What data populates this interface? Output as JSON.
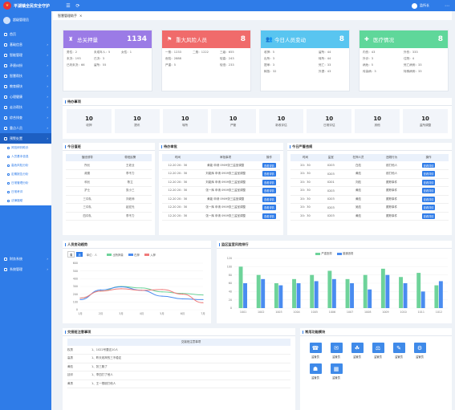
{
  "app": {
    "title": "平湖镇全民安全守护",
    "user": "监所长"
  },
  "sidebar": {
    "profile_name": "超级管理员",
    "items": [
      {
        "label": "首页",
        "active": false
      },
      {
        "label": "基础信息",
        "active": false
      },
      {
        "label": "智能管理",
        "active": false
      },
      {
        "label": "矛盾纠纷",
        "active": false
      },
      {
        "label": "智慧帮扶",
        "active": false
      },
      {
        "label": "教育模块",
        "active": false
      },
      {
        "label": "心理健康",
        "active": false
      },
      {
        "label": "走访帮扶",
        "active": false
      },
      {
        "label": "综合排查",
        "active": false
      },
      {
        "label": "重点人员",
        "active": false
      },
      {
        "label": "预警处置",
        "active": true
      }
    ],
    "sub_items": [
      "风险研判助手",
      "人员基本信息",
      "高危风险分析",
      "定期报告分析",
      "日常管理分析",
      "日常考评",
      "法律援助"
    ],
    "items_after": [
      {
        "label": "财务系统"
      },
      {
        "label": "系统管理"
      }
    ]
  },
  "tabbar": {
    "label": "智慧管理助手",
    "close": "×"
  },
  "stats": [
    {
      "label": "总关押量",
      "value": "1134",
      "color": "#9b7be6",
      "icon": "♜",
      "fields": [
        "男性：2",
        "未成年人：5",
        "女性：1",
        "未决：193",
        "已决：3",
        "",
        "已判未决：66",
        "留所：55",
        ""
      ]
    },
    {
      "label": "重大风险人员",
      "value": "8",
      "color": "#f06b6b",
      "icon": "⚑",
      "fields": [
        "一般：1233",
        "二般：1222",
        "三级：655",
        "危险：2888",
        "",
        "较高：243",
        "严重：5",
        "",
        "较低：233"
      ]
    },
    {
      "label": "今日人员变动",
      "value": "8",
      "color": "#59c5f0",
      "icon": "👥",
      "fields": [
        "收押：5",
        "",
        "留所：44",
        "出所：3",
        "",
        "转所：44",
        "提审：3",
        "",
        "死亡：33",
        "释放：32",
        "",
        "外提：43"
      ]
    },
    {
      "label": "医疗情况",
      "value": "8",
      "color": "#5fd79a",
      "icon": "✚",
      "fields": [
        "内伤：43",
        "外伤：333",
        "外诊：3",
        "住院：4",
        "病危：5",
        "死亡病例：33",
        "传染病：3",
        "特殊病例：33"
      ]
    }
  ],
  "pending": {
    "title": "待办事项",
    "items": [
      {
        "n": "10",
        "l": "收押"
      },
      {
        "n": "10",
        "l": "提讯"
      },
      {
        "n": "10",
        "l": "转所"
      },
      {
        "n": "10",
        "l": "严管"
      },
      {
        "n": "10",
        "l": "新收评估"
      },
      {
        "n": "10",
        "l": "日常评估"
      },
      {
        "n": "10",
        "l": "其他"
      },
      {
        "n": "10",
        "l": "监所调整"
      }
    ]
  },
  "duty": {
    "title": "今日值班",
    "headers": [
      "值班领导",
      "带班民警"
    ],
    "rows": [
      [
        "所长",
        "王老业"
      ],
      [
        "政委",
        "李不力"
      ],
      [
        "科长",
        "陈立"
      ],
      [
        "护士",
        "张小三"
      ],
      [
        "三中队",
        "刘老师"
      ],
      [
        "三中队",
        "赵宏光"
      ],
      [
        "四中队",
        "李不力"
      ]
    ]
  },
  "approval": {
    "title": "待办审批",
    "headers": [
      "时间",
      "审批事项",
      "操作"
    ],
    "rows": [
      [
        "12-20 20：30",
        "黄能  申请 0909张三监室调整",
        "查看详情"
      ],
      [
        "12-20 20：30",
        "刘能辉 申请 0909张三监室调整",
        "查看详情"
      ],
      [
        "12-20 20：30",
        "刘能辉 申请 0909张三监室调整",
        "查看详情"
      ],
      [
        "12-20 20：30",
        "张一辉 申请 0909张三监室调整",
        "查看详情"
      ],
      [
        "12-20 20：30",
        "黄能  申请 0909张三监室调整",
        "查看详情"
      ],
      [
        "12-20 20：30",
        "张一辉 申请 0909张三监室调整",
        "查看详情"
      ],
      [
        "12-20 20：30",
        "张一辉 申请 0909张三监室调整",
        "查看详情"
      ]
    ]
  },
  "strict": {
    "title": "今日严管违规",
    "headers": [
      "时间",
      "监室",
      "在押人员",
      "违规行为",
      "操作"
    ],
    "rows": [
      [
        "20：30",
        "0203",
        "白彪",
        "殴打他人",
        "查看详情"
      ],
      [
        "20：30",
        "0203",
        "黄彪",
        "殴打他人",
        "查看详情"
      ],
      [
        "20：30",
        "0201",
        "刘彪",
        "跟踪事件",
        "查看详情"
      ],
      [
        "20：30",
        "0203",
        "黄彪",
        "跟踪事件",
        "查看详情"
      ],
      [
        "20：30",
        "0203",
        "黄彪",
        "跟踪事件",
        "查看详情"
      ],
      [
        "20：30",
        "0203",
        "吴彪",
        "跟踪事件",
        "查看详情"
      ],
      [
        "20：30",
        "0203",
        "黄彪",
        "跟踪事件",
        "查看详情"
      ]
    ]
  },
  "trend": {
    "title": "人员变动趋势",
    "tabs": [
      "周",
      "月"
    ],
    "active_tab": "月",
    "legend_prefix": "单位：人"
  },
  "cell_risk": {
    "title": "监区监室风险排行"
  },
  "handover": {
    "title": "交接班注意事项",
    "header": "交接班注意事项",
    "rows": [
      [
        "权男",
        "1、1022号要这10人"
      ],
      [
        "高男",
        "1、昨天收押的三不稳定"
      ],
      [
        "黄彪",
        "1、张三跑了"
      ],
      [
        "廷邓",
        "1、李四打了他人"
      ],
      [
        "黄男",
        "1、王一想殴打他人"
      ]
    ]
  },
  "quick": {
    "title": "常用功能模块",
    "items": [
      {
        "label": "监管员",
        "icon": "☎"
      },
      {
        "label": "监管员",
        "icon": "✉"
      },
      {
        "label": "监管员",
        "icon": "☘"
      },
      {
        "label": "监管员",
        "icon": "⚖"
      },
      {
        "label": "监管员",
        "icon": "✎"
      },
      {
        "label": "监管员",
        "icon": "⚙"
      },
      {
        "label": "监管员",
        "icon": "☗"
      },
      {
        "label": "监管员",
        "icon": "▦"
      }
    ]
  },
  "chart_data": [
    {
      "type": "line",
      "title": "人员变动趋势",
      "categories": [
        "1月",
        "2月",
        "3月",
        "4月",
        "5月",
        "6月",
        "7月"
      ],
      "ylim": [
        0,
        600
      ],
      "yticks": [
        "0",
        "100",
        "200",
        "300",
        "400",
        "500",
        "600"
      ],
      "series": [
        {
          "name": "出所押量",
          "color": "#6ed39a",
          "values": [
            150,
            240,
            300,
            280,
            230,
            210,
            190
          ]
        },
        {
          "name": "在押",
          "color": "#4a8cf0",
          "values": [
            130,
            255,
            295,
            250,
            175,
            140,
            130
          ]
        },
        {
          "name": "入押",
          "color": "#f07a7a",
          "values": [
            150,
            240,
            270,
            250,
            260,
            200,
            90
          ]
        }
      ]
    },
    {
      "type": "bar",
      "title": "监区监室风险排行",
      "categories": [
        "1001",
        "1002",
        "1003",
        "1004",
        "1005",
        "1006",
        "1007",
        "1008",
        "1009",
        "1010",
        "1011",
        "1012"
      ],
      "ylim": [
        0,
        120
      ],
      "yticks": [
        "0",
        "20",
        "40",
        "60",
        "80",
        "100",
        "120"
      ],
      "series": [
        {
          "name": "严重违规",
          "color": "#6ed39a",
          "values": [
            100,
            80,
            60,
            70,
            80,
            90,
            70,
            80,
            95,
            75,
            85,
            55
          ]
        },
        {
          "name": "普通违规",
          "color": "#4a8cf0",
          "values": [
            60,
            70,
            55,
            60,
            65,
            70,
            60,
            45,
            80,
            60,
            40,
            65
          ]
        }
      ]
    }
  ]
}
